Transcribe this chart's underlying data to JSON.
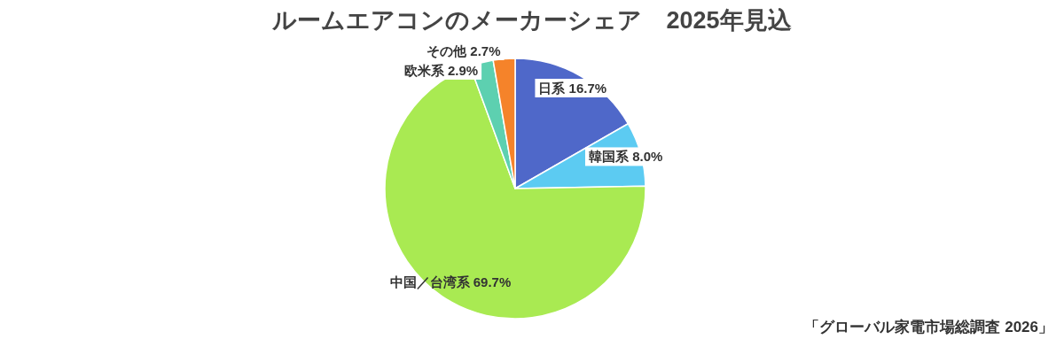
{
  "chart_data": {
    "type": "pie",
    "title": "ルームエアコンのメーカーシェア　2025年見込",
    "categories": [
      "日系",
      "韓国系",
      "中国／台湾系",
      "欧米系",
      "その他"
    ],
    "values": [
      16.7,
      8.0,
      69.7,
      2.9,
      2.7
    ],
    "colors": [
      "#4f68c9",
      "#5ccbf2",
      "#a9ea52",
      "#5dd0b0",
      "#f5832a"
    ],
    "value_labels": [
      "16.7%",
      "8.0%",
      "69.7%",
      "2.9%",
      "2.7%"
    ],
    "annotations": [
      "「グローバル家電市場総調査 2026」"
    ]
  }
}
